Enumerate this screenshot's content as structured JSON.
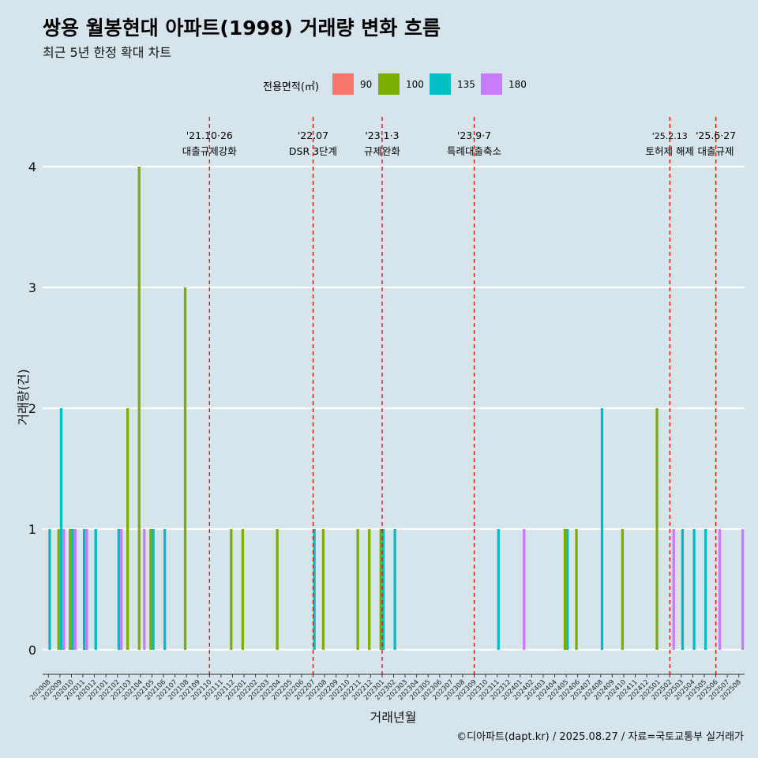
{
  "title": "쌍용 월봉현대 아파트(1998) 거래량 변화 흐름",
  "subtitle": "최근 5년 한정 확대 차트",
  "caption": "©디아파트(dapt.kr) / 2025.08.27 / 자료=국토교통부 실거래가",
  "legend": {
    "title": "전용면적(㎡)",
    "items": [
      {
        "label": "90",
        "color": "#f8766d"
      },
      {
        "label": "100",
        "color": "#7cae00"
      },
      {
        "label": "135",
        "color": "#00bfc4"
      },
      {
        "label": "180",
        "color": "#c77cff"
      }
    ]
  },
  "chart_data": {
    "type": "bar",
    "xlabel": "거래년월",
    "ylabel": "거래량(건)",
    "ylim": [
      0,
      4
    ],
    "yticks": [
      0,
      1,
      2,
      3,
      4
    ],
    "grid": true,
    "legend_position": "top",
    "categories": [
      "202008",
      "202009",
      "202010",
      "202011",
      "202012",
      "202101",
      "202102",
      "202103",
      "202104",
      "202105",
      "202106",
      "202107",
      "202108",
      "202109",
      "202110",
      "202111",
      "202112",
      "202201",
      "202202",
      "202203",
      "202204",
      "202205",
      "202206",
      "202207",
      "202208",
      "202209",
      "202210",
      "202211",
      "202212",
      "202301",
      "202302",
      "202303",
      "202304",
      "202305",
      "202306",
      "202307",
      "202308",
      "202309",
      "202310",
      "202311",
      "202312",
      "202401",
      "202402",
      "202403",
      "202404",
      "202405",
      "202406",
      "202407",
      "202408",
      "202409",
      "202410",
      "202411",
      "202412",
      "202501",
      "202502",
      "202503",
      "202504",
      "202505",
      "202506",
      "202507",
      "202508"
    ],
    "series": [
      {
        "name": "90",
        "color": "#f8766d",
        "values": [
          0,
          0,
          0,
          0,
          0,
          0,
          0,
          0,
          0,
          0,
          0,
          0,
          0,
          0,
          0,
          0,
          0,
          0,
          0,
          0,
          0,
          0,
          0,
          0,
          0,
          0,
          0,
          0,
          0,
          0,
          0,
          0,
          0,
          0,
          0,
          0,
          0,
          0,
          0,
          0,
          0,
          0,
          0,
          0,
          0,
          0,
          0,
          0,
          0,
          0,
          0,
          0,
          0,
          0,
          0,
          0,
          0,
          0,
          0,
          0,
          0
        ]
      },
      {
        "name": "100",
        "color": "#7cae00",
        "values": [
          0,
          1,
          1,
          0,
          0,
          0,
          0,
          2,
          4,
          1,
          0,
          0,
          3,
          0,
          0,
          0,
          1,
          1,
          0,
          0,
          1,
          0,
          0,
          0,
          1,
          0,
          0,
          1,
          1,
          1,
          0,
          0,
          0,
          0,
          0,
          0,
          0,
          0,
          0,
          0,
          0,
          0,
          0,
          0,
          0,
          1,
          1,
          0,
          0,
          0,
          1,
          0,
          0,
          2,
          0,
          0,
          0,
          0,
          0,
          0,
          0
        ]
      },
      {
        "name": "135",
        "color": "#00bfc4",
        "values": [
          1,
          2,
          1,
          1,
          1,
          0,
          1,
          0,
          0,
          1,
          1,
          0,
          0,
          0,
          0,
          0,
          0,
          0,
          0,
          0,
          0,
          0,
          0,
          1,
          0,
          0,
          0,
          0,
          0,
          1,
          1,
          0,
          0,
          0,
          0,
          0,
          0,
          0,
          0,
          1,
          0,
          0,
          0,
          0,
          0,
          1,
          0,
          0,
          2,
          0,
          0,
          0,
          0,
          0,
          0,
          1,
          1,
          1,
          0,
          0,
          0
        ]
      },
      {
        "name": "180",
        "color": "#c77cff",
        "values": [
          0,
          1,
          1,
          1,
          0,
          0,
          1,
          0,
          1,
          0,
          0,
          0,
          0,
          0,
          0,
          0,
          0,
          0,
          0,
          0,
          0,
          0,
          0,
          0,
          0,
          0,
          0,
          0,
          0,
          0,
          0,
          0,
          0,
          0,
          0,
          0,
          0,
          0,
          0,
          0,
          0,
          1,
          0,
          0,
          0,
          0,
          0,
          0,
          0,
          0,
          0,
          0,
          0,
          0,
          1,
          0,
          0,
          0,
          1,
          0,
          1
        ]
      }
    ],
    "annotations": [
      {
        "x": "202110",
        "date": "'21.10·26",
        "label": "대출규제강화"
      },
      {
        "x": "202207",
        "date": "'22.07",
        "label": "DSR 3단계"
      },
      {
        "x": "202301",
        "date": "'23.1·3",
        "label": "규제완화"
      },
      {
        "x": "202309",
        "date": "'23.9·7",
        "label": "특례대출축소"
      },
      {
        "x": "202502",
        "date": "'25.2.13",
        "label": "토허제 해제"
      },
      {
        "x": "202506",
        "date": "'25.6·27",
        "label": "대출규제"
      }
    ]
  }
}
